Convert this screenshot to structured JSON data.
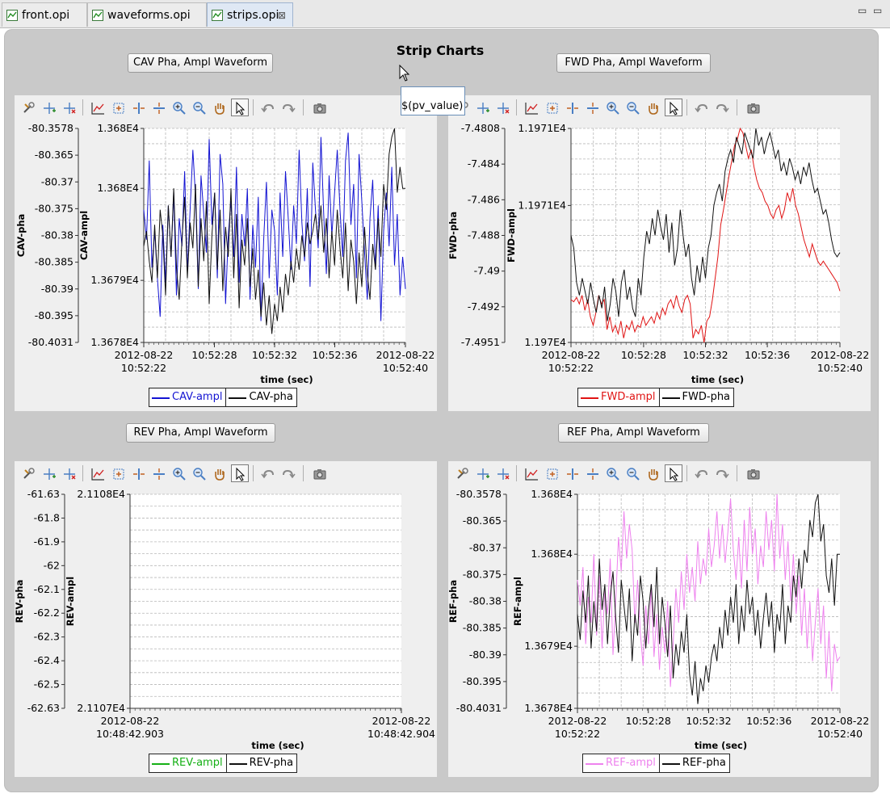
{
  "tabs": [
    {
      "label": "front.opi"
    },
    {
      "label": "waveforms.opi"
    },
    {
      "label": "strips.opi",
      "close": "⊠"
    }
  ],
  "window_controls": {
    "minimize": "▭",
    "maximize": "▭"
  },
  "page": {
    "title": "Strip Charts"
  },
  "tooltip": {
    "text": "$(pv_value)"
  },
  "buttons": {
    "cav": "CAV Pha, Ampl Waveform",
    "fwd": "FWD Pha, Ampl Waveform",
    "rev": "REV Pha, Ampl Waveform",
    "ref": "REF Pha, Ampl Waveform"
  },
  "toolbar_icons": [
    "configure-icon",
    "add-annotation-icon",
    "remove-annotation-icon",
    "autoscale-icon",
    "rubberband-zoom-icon",
    "horizontal-zoom-icon",
    "vertical-zoom-icon",
    "zoom-in-icon",
    "zoom-out-icon",
    "panning-icon",
    "pointer-icon",
    "undo-icon",
    "redo-icon",
    "snapshot-icon"
  ],
  "chart_data": [
    {
      "id": "cav",
      "type": "line",
      "xlabel": "time (sec)",
      "y1_label": "CAV-pha",
      "y2_label": "CAV-ampl",
      "pha_ticks": [
        "-80.3578",
        "-80.365",
        "-80.37",
        "-80.375",
        "-80.38",
        "-80.385",
        "-80.39",
        "-80.395",
        "-80.4031"
      ],
      "ampl_ticks": [
        "1.368E4",
        "1.368E4",
        "1.3679E4",
        "1.3678E4"
      ],
      "x_ticks": [
        {
          "line1": "2012-08-22",
          "line2": "10:52:22"
        },
        {
          "line1": "10:52:28",
          "line2": ""
        },
        {
          "line1": "10:52:32",
          "line2": ""
        },
        {
          "line1": "10:52:36",
          "line2": ""
        },
        {
          "line1": "2012-08-22",
          "line2": "10:52:40"
        }
      ],
      "series": [
        {
          "name": "CAV-ampl",
          "color": "#1414d2",
          "values": [
            0.62,
            0.48,
            0.85,
            0.35,
            0.52,
            0.3,
            0.12,
            0.55,
            0.28,
            0.64,
            0.4,
            0.7,
            0.22,
            0.58,
            0.45,
            0.8,
            0.33,
            0.62,
            0.9,
            0.68,
            0.25,
            0.78,
            0.6,
            0.42,
            0.95,
            0.55,
            0.7,
            0.3,
            0.88,
            0.74,
            0.18,
            0.5,
            0.66,
            0.4,
            0.82,
            0.28,
            0.6,
            0.45,
            0.72,
            0.2,
            0.55,
            0.35,
            0.68,
            0.1,
            0.48,
            0.75,
            0.3,
            0.62,
            0.52,
            0.22,
            0.7,
            0.4,
            0.8,
            0.58,
            0.34,
            0.64,
            0.46,
            0.9,
            0.56,
            0.38,
            0.72,
            0.26,
            0.84,
            0.62,
            0.44,
            0.96,
            0.6,
            0.32,
            0.78,
            0.5,
            0.7,
            0.9,
            0.62,
            0.4,
            0.85,
            0.98,
            0.55,
            0.74,
            0.3,
            0.88,
            0.66,
            0.42,
            0.2,
            0.58,
            0.76,
            0.34,
            0.64,
            0.1,
            0.52,
            0.7,
            0.45,
            0.82,
            0.36,
            0.6,
            0.22,
            0.4,
            0.25
          ]
        },
        {
          "name": "CAV-pha",
          "color": "#111111",
          "values": [
            0.45,
            0.52,
            0.38,
            0.28,
            0.55,
            0.3,
            0.62,
            0.5,
            0.22,
            0.64,
            0.4,
            0.72,
            0.35,
            0.2,
            0.48,
            0.68,
            0.3,
            0.56,
            0.44,
            0.74,
            0.26,
            0.58,
            0.38,
            0.66,
            0.18,
            0.5,
            0.7,
            0.34,
            0.62,
            0.24,
            0.54,
            0.4,
            0.72,
            0.3,
            0.6,
            0.16,
            0.48,
            0.36,
            0.58,
            0.26,
            0.44,
            0.2,
            0.34,
            0.12,
            0.28,
            0.08,
            0.22,
            0.04,
            0.18,
            0.1,
            0.26,
            0.14,
            0.32,
            0.22,
            0.38,
            0.28,
            0.44,
            0.34,
            0.5,
            0.4,
            0.56,
            0.46,
            0.52,
            0.6,
            0.48,
            0.64,
            0.42,
            0.58,
            0.3,
            0.52,
            0.36,
            0.62,
            0.44,
            0.3,
            0.56,
            0.24,
            0.48,
            0.38,
            0.18,
            0.42,
            0.26,
            0.54,
            0.32,
            0.2,
            0.46,
            0.34,
            0.58,
            0.4,
            0.74,
            0.62,
            0.88,
            0.96,
            1.0,
            0.7,
            0.82,
            0.72,
            0.72
          ]
        }
      ]
    },
    {
      "id": "fwd",
      "type": "line",
      "xlabel": "time (sec)",
      "y1_label": "FWD-pha",
      "y2_label": "FWD-ampl",
      "pha_ticks": [
        "-7.4808",
        "-7.484",
        "-7.486",
        "-7.488",
        "-7.49",
        "-7.492",
        "-7.4951"
      ],
      "ampl_ticks": [
        "1.1971E4",
        "1.1971E4",
        "1.197E4"
      ],
      "x_ticks": [
        {
          "line1": "2012-08-22",
          "line2": "10:52:22"
        },
        {
          "line1": "10:52:28",
          "line2": ""
        },
        {
          "line1": "10:52:32",
          "line2": ""
        },
        {
          "line1": "10:52:36",
          "line2": ""
        },
        {
          "line1": "2012-08-22",
          "line2": "10:52:40"
        }
      ],
      "series": [
        {
          "name": "FWD-ampl",
          "color": "#e01414",
          "values": [
            0.2,
            0.19,
            0.21,
            0.18,
            0.22,
            0.15,
            0.2,
            0.12,
            0.08,
            0.14,
            0.22,
            0.18,
            0.2,
            0.06,
            0.12,
            0.05,
            0.08,
            0.04,
            0.1,
            0.02,
            0.08,
            0.06,
            0.1,
            0.05,
            0.08,
            0.07,
            0.12,
            0.08,
            0.1,
            0.12,
            0.09,
            0.14,
            0.11,
            0.16,
            0.13,
            0.18,
            0.2,
            0.16,
            0.22,
            0.17,
            0.14,
            0.2,
            0.22,
            0.18,
            0.02,
            0.06,
            0.04,
            0.08,
            0.0,
            0.1,
            0.12,
            0.2,
            0.3,
            0.4,
            0.55,
            0.62,
            0.7,
            0.78,
            0.85,
            0.92,
            0.95,
            1.0,
            0.98,
            0.92,
            0.86,
            0.9,
            0.82,
            0.76,
            0.72,
            0.7,
            0.66,
            0.64,
            0.6,
            0.58,
            0.62,
            0.64,
            0.58,
            0.62,
            0.7,
            0.66,
            0.72,
            0.64,
            0.6,
            0.54,
            0.48,
            0.44,
            0.4,
            0.46,
            0.42,
            0.38,
            0.36,
            0.38,
            0.36,
            0.34,
            0.32,
            0.3,
            0.28,
            0.24
          ]
        },
        {
          "name": "FWD-pha",
          "color": "#111111",
          "values": [
            0.5,
            0.44,
            0.28,
            0.22,
            0.3,
            0.24,
            0.18,
            0.28,
            0.2,
            0.14,
            0.22,
            0.16,
            0.26,
            0.1,
            0.18,
            0.3,
            0.24,
            0.12,
            0.28,
            0.34,
            0.2,
            0.26,
            0.16,
            0.12,
            0.3,
            0.22,
            0.4,
            0.52,
            0.46,
            0.58,
            0.5,
            0.62,
            0.54,
            0.48,
            0.6,
            0.42,
            0.56,
            0.36,
            0.44,
            0.62,
            0.5,
            0.4,
            0.46,
            0.3,
            0.22,
            0.36,
            0.28,
            0.4,
            0.3,
            0.44,
            0.5,
            0.64,
            0.7,
            0.74,
            0.66,
            0.8,
            0.86,
            0.9,
            0.84,
            0.96,
            0.92,
            0.88,
            0.98,
            0.94,
            0.9,
            0.86,
            1.0,
            0.92,
            0.96,
            0.88,
            0.94,
            0.98,
            0.92,
            0.86,
            0.9,
            0.8,
            0.84,
            0.78,
            0.86,
            0.82,
            0.76,
            0.8,
            0.74,
            0.82,
            0.78,
            0.84,
            0.76,
            0.7,
            0.72,
            0.66,
            0.6,
            0.62,
            0.56,
            0.48,
            0.42,
            0.4,
            0.42
          ]
        }
      ]
    },
    {
      "id": "rev",
      "type": "line",
      "xlabel": "time (sec)",
      "y1_label": "REV-pha",
      "y2_label": "REV-ampl",
      "pha_ticks": [
        "-61.63",
        "-61.8",
        "-61.9",
        "-62",
        "-62.1",
        "-62.2",
        "-62.3",
        "-62.4",
        "-62.5",
        "-62.63"
      ],
      "ampl_ticks": [
        "2.1108E4",
        "2.1107E4"
      ],
      "x_ticks": [
        {
          "line1": "2012-08-22",
          "line2": "10:48:42.903"
        },
        {
          "line1": "2012-08-22",
          "line2": "10:48:42.904"
        }
      ],
      "series": [
        {
          "name": "REV-ampl",
          "color": "#16b016",
          "values": []
        },
        {
          "name": "REV-pha",
          "color": "#111111",
          "values": []
        }
      ]
    },
    {
      "id": "ref",
      "type": "line",
      "xlabel": "time (sec)",
      "y1_label": "REF-pha",
      "y2_label": "REF-ampl",
      "pha_ticks": [
        "-80.3578",
        "-80.365",
        "-80.37",
        "-80.375",
        "-80.38",
        "-80.385",
        "-80.39",
        "-80.395",
        "-80.4031"
      ],
      "ampl_ticks": [
        "1.368E4",
        "1.368E4",
        "1.3679E4",
        "1.3678E4"
      ],
      "x_ticks": [
        {
          "line1": "2012-08-22",
          "line2": "10:52:22"
        },
        {
          "line1": "10:52:28",
          "line2": ""
        },
        {
          "line1": "10:52:32",
          "line2": ""
        },
        {
          "line1": "10:52:36",
          "line2": ""
        },
        {
          "line1": "2012-08-22",
          "line2": "10:52:40"
        }
      ],
      "series": [
        {
          "name": "REF-ampl",
          "color": "#ee82ee",
          "values": [
            0.6,
            0.48,
            0.66,
            0.3,
            0.52,
            0.4,
            0.72,
            0.34,
            0.62,
            0.28,
            0.55,
            0.44,
            0.7,
            0.25,
            0.5,
            0.8,
            0.64,
            0.92,
            0.7,
            0.86,
            0.74,
            0.4,
            0.6,
            0.35,
            0.2,
            0.48,
            0.3,
            0.58,
            0.24,
            0.44,
            0.18,
            0.38,
            0.26,
            0.5,
            0.1,
            0.3,
            0.56,
            0.4,
            0.64,
            0.46,
            0.72,
            0.54,
            0.66,
            0.5,
            0.78,
            0.58,
            0.7,
            0.62,
            0.84,
            0.66,
            0.76,
            0.92,
            0.7,
            0.86,
            0.68,
            0.82,
            0.98,
            0.74,
            0.6,
            0.8,
            0.56,
            0.88,
            0.64,
            0.94,
            0.72,
            0.84,
            0.58,
            0.76,
            0.66,
            0.92,
            0.74,
            0.88,
            0.64,
            1.0,
            0.7,
            0.86,
            0.6,
            0.78,
            0.5,
            0.72,
            0.44,
            0.62,
            0.34,
            0.56,
            0.28,
            0.5,
            0.22,
            0.4,
            0.56,
            0.3,
            0.48,
            0.14,
            0.36,
            0.08,
            0.3,
            0.22,
            0.24
          ]
        },
        {
          "name": "REF-pha",
          "color": "#111111",
          "values": [
            0.44,
            0.32,
            0.55,
            0.4,
            0.62,
            0.28,
            0.5,
            0.36,
            0.7,
            0.46,
            0.58,
            0.3,
            0.52,
            0.64,
            0.42,
            0.26,
            0.6,
            0.48,
            0.36,
            0.56,
            0.22,
            0.44,
            0.34,
            0.62,
            0.5,
            0.28,
            0.46,
            0.58,
            0.38,
            0.66,
            0.3,
            0.52,
            0.4,
            0.24,
            0.48,
            0.14,
            0.3,
            0.2,
            0.36,
            0.26,
            0.44,
            0.16,
            0.06,
            0.22,
            0.02,
            0.14,
            0.08,
            0.2,
            0.12,
            0.24,
            0.3,
            0.22,
            0.38,
            0.28,
            0.46,
            0.34,
            0.52,
            0.4,
            0.58,
            0.3,
            0.48,
            0.36,
            0.6,
            0.44,
            0.52,
            0.34,
            0.46,
            0.28,
            0.42,
            0.54,
            0.38,
            0.5,
            0.26,
            0.44,
            0.36,
            0.58,
            0.3,
            0.48,
            0.4,
            0.62,
            0.52,
            0.7,
            0.56,
            0.74,
            0.68,
            0.88,
            0.8,
            0.96,
            1.0,
            0.78,
            0.86,
            0.62,
            0.54,
            0.7,
            0.48,
            0.72,
            0.72
          ]
        }
      ]
    }
  ]
}
